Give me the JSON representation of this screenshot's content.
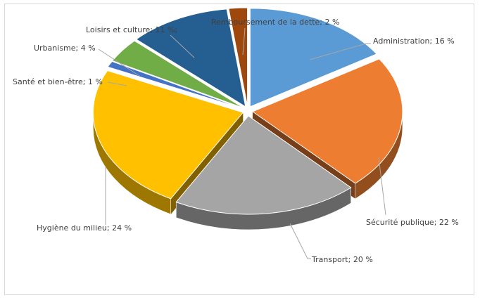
{
  "chart_data": {
    "type": "pie",
    "style": "3d-exploded",
    "title": "",
    "slices": [
      {
        "label": "Administration; 16 %",
        "name": "Administration",
        "value": 16,
        "color": "#5b9bd5"
      },
      {
        "label": "Sécurité publique; 22 %",
        "name": "Sécurité publique",
        "value": 22,
        "color": "#ed7d31"
      },
      {
        "label": "Transport; 20 %",
        "name": "Transport",
        "value": 20,
        "color": "#a5a5a5"
      },
      {
        "label": "Hygiène du milieu; 24 %",
        "name": "Hygiène du milieu",
        "value": 24,
        "color": "#ffc000"
      },
      {
        "label": "Santé et bien-être; 1 %",
        "name": "Santé et bien-être",
        "value": 1,
        "color": "#4472c4"
      },
      {
        "label": "Urbanisme; 4 %",
        "name": "Urbanisme",
        "value": 4,
        "color": "#70ad47"
      },
      {
        "label": "Loisirs et culture; 11 %;",
        "name": "Loisirs et culture",
        "value": 11,
        "color": "#255e91"
      },
      {
        "label": "Remboursement de la dette; 2 %",
        "name": "Remboursement de la dette",
        "value": 2,
        "color": "#9e480e"
      }
    ]
  }
}
